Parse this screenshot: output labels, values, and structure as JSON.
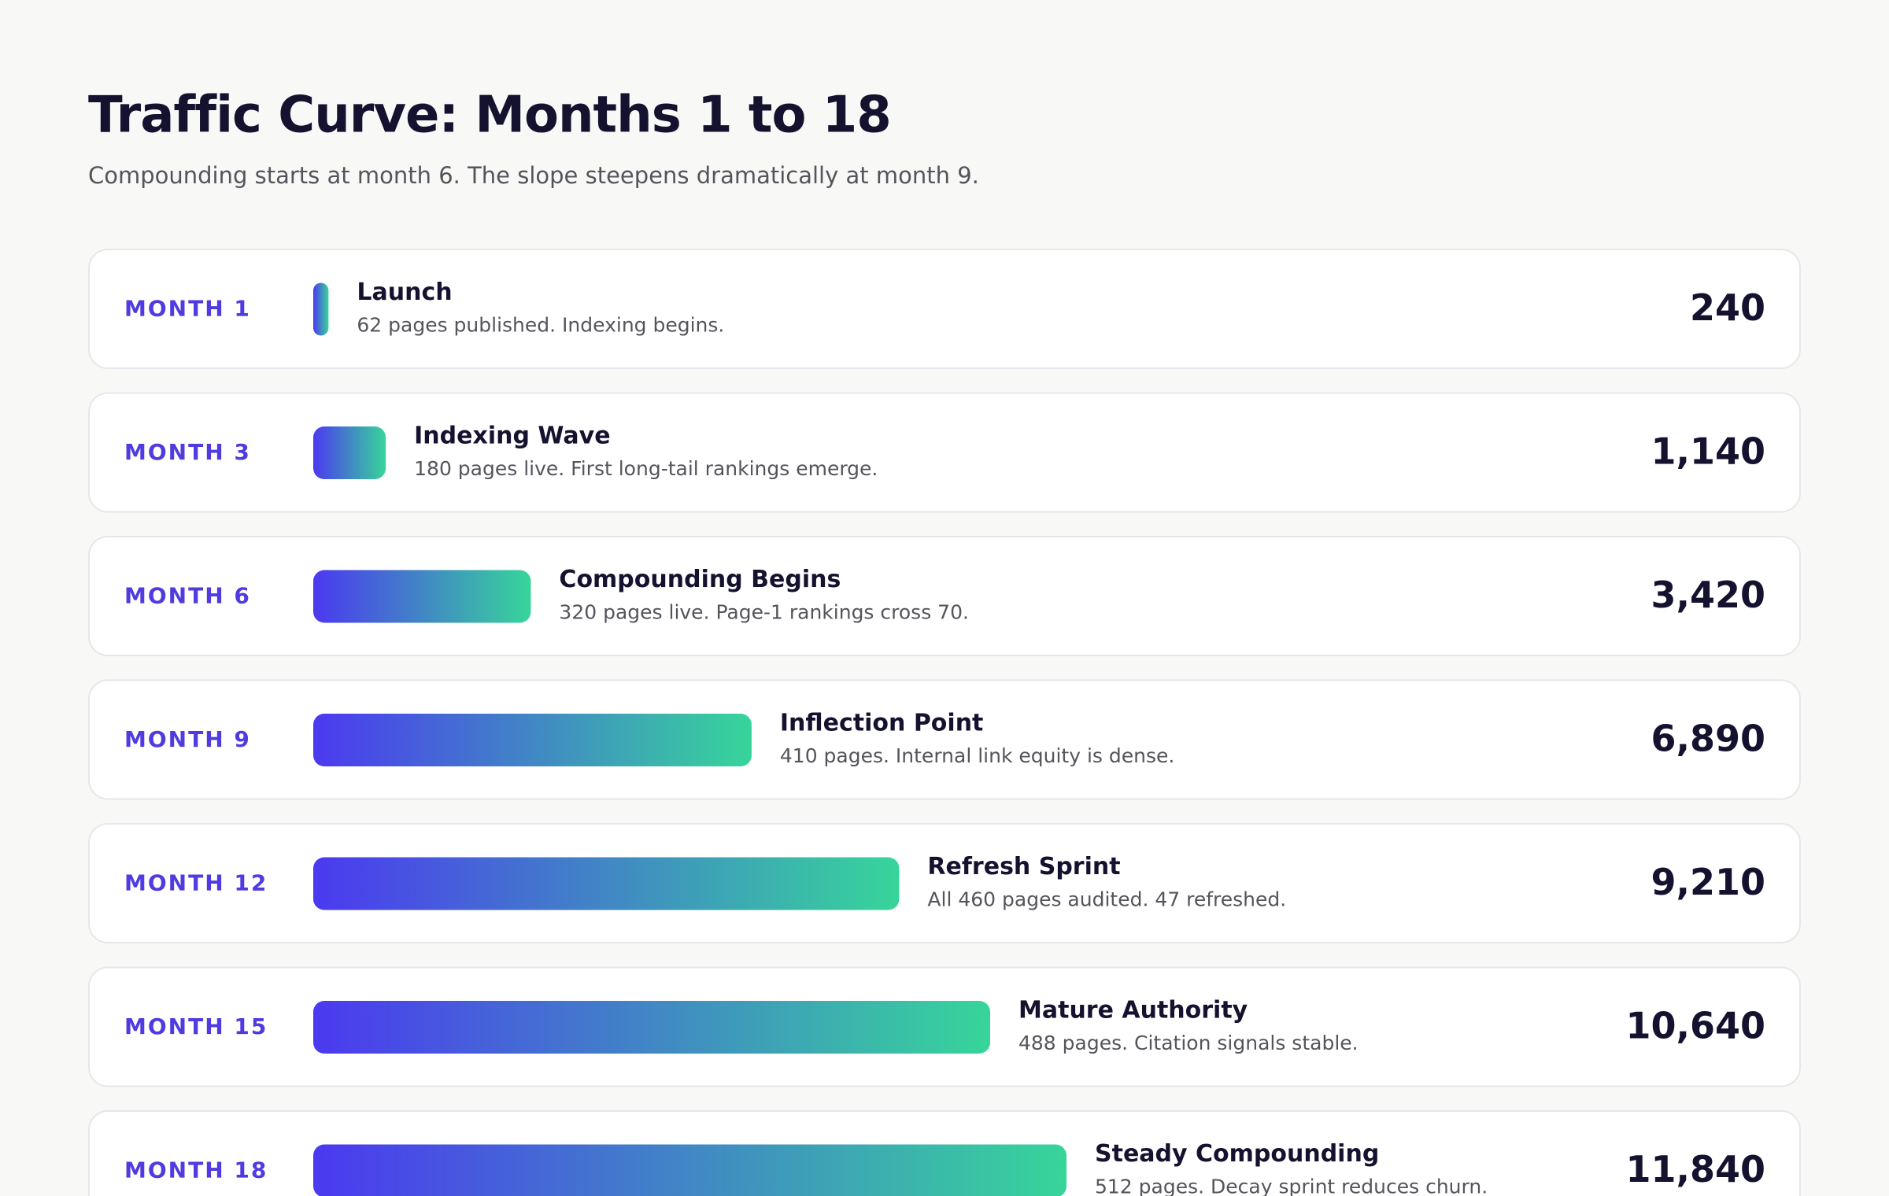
{
  "chart_data": {
    "type": "bar",
    "title": "Traffic Curve: Months 1 to 18",
    "subtitle": "Compounding starts at month 6. The slope steepens dramatically at month 9.",
    "categories": [
      "MONTH 1",
      "MONTH 3",
      "MONTH 6",
      "MONTH 9",
      "MONTH 12",
      "MONTH 15",
      "MONTH 18"
    ],
    "values": [
      240,
      1140,
      3420,
      6890,
      9210,
      10640,
      11840
    ],
    "value_labels": [
      "240",
      "1,140",
      "3,420",
      "6,890",
      "9,210",
      "10,640",
      "11,840"
    ],
    "milestones": [
      {
        "title": "Launch",
        "description": "62 pages published. Indexing begins."
      },
      {
        "title": "Indexing Wave",
        "description": "180 pages live. First long-tail rankings emerge."
      },
      {
        "title": "Compounding Begins",
        "description": "320 pages live. Page-1 rankings cross 70."
      },
      {
        "title": "Inflection Point",
        "description": "410 pages. Internal link equity is dense."
      },
      {
        "title": "Refresh Sprint",
        "description": "All 460 pages audited. 47 refreshed."
      },
      {
        "title": "Mature Authority",
        "description": "488 pages. Citation signals stable."
      },
      {
        "title": "Steady Compounding",
        "description": "512 pages. Decay sprint reduces churn."
      }
    ],
    "gradient": [
      "#4b39f0",
      "#37d59a"
    ]
  }
}
